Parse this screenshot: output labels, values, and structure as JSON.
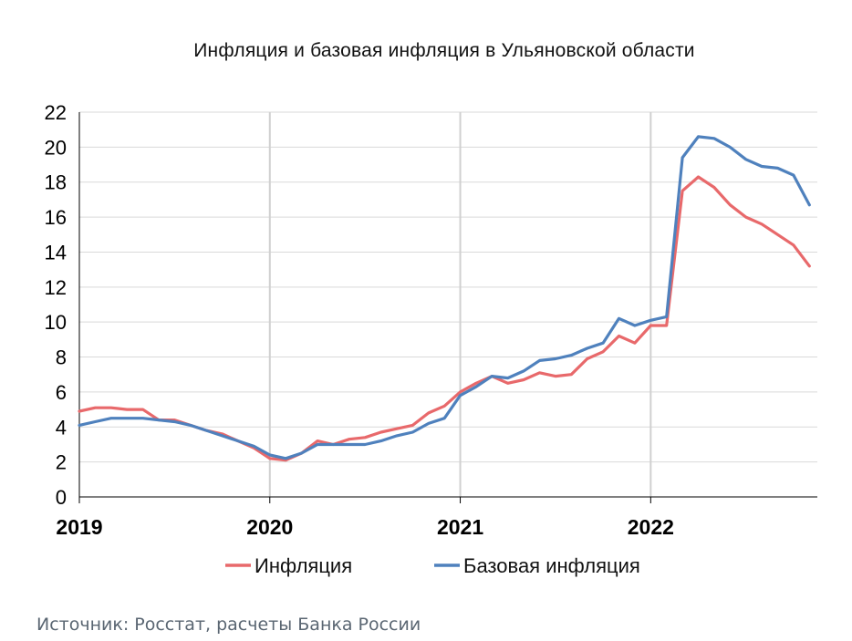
{
  "chart_data": {
    "type": "line",
    "title": "Инфляция и базовая инфляция в Ульяновской области",
    "source": "Источник: Росстат, расчеты Банка России",
    "xlabel": "",
    "ylabel": "",
    "ylim": [
      0,
      22
    ],
    "yticks": [
      "0",
      "2",
      "4",
      "6",
      "8",
      "10",
      "12",
      "14",
      "16",
      "18",
      "20",
      "22"
    ],
    "x_start": "2019-01",
    "x_end": "2022-11",
    "xticks": [
      {
        "label": "2019",
        "month": "2019-01"
      },
      {
        "label": "2020",
        "month": "2020-01"
      },
      {
        "label": "2021",
        "month": "2021-01"
      },
      {
        "label": "2022",
        "month": "2022-01"
      }
    ],
    "grid": {
      "horizontal": true,
      "vertical_at_years": true
    },
    "legend_position": "bottom",
    "series": [
      {
        "name": "Инфляция",
        "color": "#E8696B",
        "values": [
          4.9,
          5.1,
          5.1,
          5.0,
          5.0,
          4.4,
          4.4,
          4.1,
          3.8,
          3.6,
          3.2,
          2.8,
          2.2,
          2.1,
          2.5,
          3.2,
          3.0,
          3.3,
          3.4,
          3.7,
          3.9,
          4.1,
          4.8,
          5.2,
          6.0,
          6.5,
          6.9,
          6.5,
          6.7,
          7.1,
          6.9,
          7.0,
          7.9,
          8.3,
          9.2,
          8.8,
          9.8,
          9.8,
          17.5,
          18.3,
          17.7,
          16.7,
          16.0,
          15.6,
          15.0,
          14.4,
          13.2
        ]
      },
      {
        "name": "Базовая инфляция",
        "color": "#4F81BD",
        "values": [
          4.1,
          4.3,
          4.5,
          4.5,
          4.5,
          4.4,
          4.3,
          4.1,
          3.8,
          3.5,
          3.2,
          2.9,
          2.4,
          2.2,
          2.5,
          3.0,
          3.0,
          3.0,
          3.0,
          3.2,
          3.5,
          3.7,
          4.2,
          4.5,
          5.8,
          6.3,
          6.9,
          6.8,
          7.2,
          7.8,
          7.9,
          8.1,
          8.5,
          8.8,
          10.2,
          9.8,
          10.1,
          10.3,
          19.4,
          20.6,
          20.5,
          20.0,
          19.3,
          18.9,
          18.8,
          18.4,
          16.7
        ]
      }
    ]
  }
}
